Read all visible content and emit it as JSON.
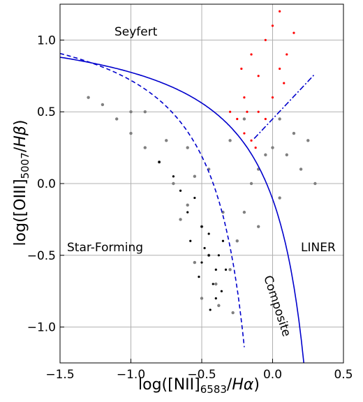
{
  "chart_data": {
    "type": "scatter",
    "xlabel": "log([NII]6583/Hα)",
    "ylabel": "log([OIII]5007/Hβ)",
    "xlim": [
      -1.5,
      0.5
    ],
    "ylim": [
      -1.25,
      1.25
    ],
    "x_ticks": [
      -1.5,
      -1.0,
      -0.5,
      0.0,
      0.5
    ],
    "x_tick_labels": [
      "−1.5",
      "−1.0",
      "−0.5",
      "0.0",
      "0.5"
    ],
    "y_ticks": [
      -1.0,
      -0.5,
      0.0,
      0.5,
      1.0
    ],
    "y_tick_labels": [
      "−1.0",
      "−0.5",
      "0.0",
      "0.5",
      "1.0"
    ],
    "grid": true,
    "region_labels": {
      "seyfert": "Seyfert",
      "star_forming": "Star-Forming",
      "liner": "LINER",
      "composite": "Composite"
    },
    "curves": [
      {
        "kind": "solid",
        "formula": "0.61/(x-0.47)+1.19",
        "x_range": [
          -1.5,
          0.22
        ]
      },
      {
        "kind": "dashed",
        "formula": "0.61/(x-0.05)+1.3",
        "x_range": [
          -1.5,
          -0.2
        ]
      },
      {
        "kind": "dashdot",
        "formula": "1.05*x+0.45",
        "x_range": [
          -0.13,
          0.3
        ]
      }
    ],
    "series": [
      {
        "color": "#808080",
        "points": [
          [
            -1.3,
            0.6
          ],
          [
            -1.2,
            0.55
          ],
          [
            -1.1,
            0.45
          ],
          [
            -1.0,
            0.35
          ],
          [
            -0.9,
            0.25
          ],
          [
            -0.8,
            0.15
          ],
          [
            -0.7,
            0.0
          ],
          [
            -0.6,
            -0.15
          ],
          [
            -0.5,
            -0.3
          ],
          [
            -0.45,
            -0.5
          ],
          [
            -0.4,
            -0.7
          ],
          [
            -0.38,
            -0.85
          ],
          [
            -0.3,
            -0.6
          ],
          [
            -0.25,
            -0.4
          ],
          [
            -0.2,
            -0.2
          ],
          [
            -0.15,
            0.0
          ],
          [
            -0.1,
            0.1
          ],
          [
            -0.05,
            0.2
          ],
          [
            0.0,
            0.25
          ],
          [
            0.1,
            0.2
          ],
          [
            0.2,
            0.1
          ],
          [
            0.3,
            0.0
          ],
          [
            0.05,
            -0.1
          ],
          [
            -0.1,
            -0.3
          ],
          [
            -0.35,
            -0.2
          ],
          [
            -0.55,
            0.05
          ],
          [
            -0.75,
            0.3
          ],
          [
            -1.0,
            0.5
          ],
          [
            -0.9,
            0.5
          ],
          [
            -0.6,
            0.25
          ],
          [
            -0.45,
            0.1
          ],
          [
            0.15,
            0.35
          ],
          [
            0.25,
            0.3
          ],
          [
            -0.2,
            0.45
          ],
          [
            -0.3,
            0.3
          ],
          [
            0.05,
            0.45
          ],
          [
            -0.65,
            -0.25
          ],
          [
            -0.55,
            -0.55
          ],
          [
            -0.28,
            -0.9
          ],
          [
            -0.5,
            -0.8
          ]
        ]
      },
      {
        "color": "#ff0000",
        "points": [
          [
            -0.2,
            0.35
          ],
          [
            -0.15,
            0.3
          ],
          [
            -0.1,
            0.5
          ],
          [
            -0.05,
            0.45
          ],
          [
            0.0,
            0.6
          ],
          [
            -0.1,
            0.75
          ],
          [
            -0.2,
            0.6
          ],
          [
            0.05,
            0.8
          ],
          [
            0.1,
            0.9
          ],
          [
            -0.05,
            1.0
          ],
          [
            0.0,
            1.1
          ],
          [
            -0.25,
            0.45
          ],
          [
            -0.15,
            0.9
          ],
          [
            0.15,
            1.05
          ],
          [
            -0.3,
            0.5
          ],
          [
            -0.22,
            0.8
          ],
          [
            0.05,
            1.2
          ],
          [
            -0.12,
            0.25
          ],
          [
            -0.18,
            0.5
          ],
          [
            0.08,
            0.7
          ]
        ]
      },
      {
        "color": "#000000",
        "points": [
          [
            -0.45,
            -0.5
          ],
          [
            -0.4,
            -0.6
          ],
          [
            -0.35,
            -0.4
          ],
          [
            -0.5,
            -0.3
          ],
          [
            -0.55,
            -0.1
          ],
          [
            -0.6,
            -0.2
          ],
          [
            -0.7,
            0.05
          ],
          [
            -0.4,
            -0.8
          ],
          [
            -0.42,
            -0.7
          ],
          [
            -0.38,
            -0.5
          ],
          [
            -0.48,
            -0.45
          ],
          [
            -0.52,
            -0.65
          ],
          [
            -0.45,
            -0.35
          ],
          [
            -0.36,
            -0.75
          ],
          [
            -0.8,
            0.15
          ],
          [
            -0.65,
            -0.05
          ],
          [
            -0.44,
            -0.88
          ],
          [
            -0.5,
            -0.55
          ],
          [
            -0.33,
            -0.6
          ],
          [
            -0.58,
            -0.4
          ]
        ]
      }
    ],
    "curve_color": "#0000cc"
  }
}
